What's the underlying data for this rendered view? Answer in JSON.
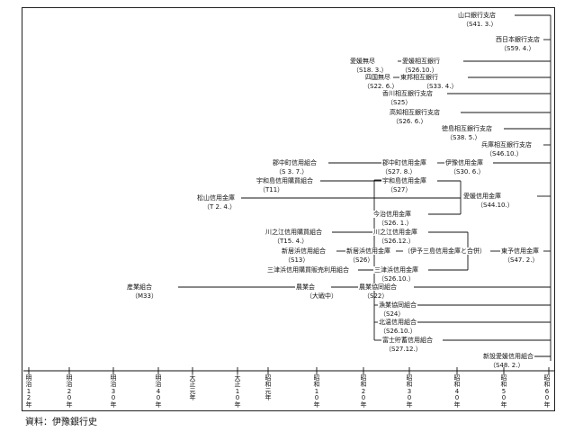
{
  "source": "資料：伊豫銀行史",
  "timeline": [
    "明治12年",
    "明治20年",
    "明治30年",
    "明治40年",
    "大正元年",
    "大正10年",
    "昭和元年",
    "昭和10年",
    "昭和20年",
    "昭和30年",
    "昭和40年",
    "昭和50年",
    "昭和60年"
  ],
  "nodes": [
    {
      "id": "yamaguchi",
      "label": "山口銀行支店",
      "date": "（S41. 3.）"
    },
    {
      "id": "nishinihon",
      "label": "西日本銀行支店",
      "date": "（S59. 4.）"
    },
    {
      "id": "ehime_mujin",
      "label": "愛媛無尽",
      "date": "（S18. 3.）"
    },
    {
      "id": "ehime_sogo",
      "label": "愛媛相互銀行",
      "date": "（S26.10.）"
    },
    {
      "id": "shikoku_mujin",
      "label": "四国無尽",
      "date": "（S22. 6.）"
    },
    {
      "id": "toyo_sogo",
      "label": "東邦相互銀行",
      "date": "（S33. 4.）"
    },
    {
      "id": "kagawa",
      "label": "香川相互銀行支店",
      "date": "（S25）"
    },
    {
      "id": "kochi",
      "label": "高知相互銀行支店",
      "date": "（S26. 6.）"
    },
    {
      "id": "tokushima",
      "label": "徳島相互銀行支店",
      "date": "（S38. 5.）"
    },
    {
      "id": "hyogo",
      "label": "兵庫相互銀行支店",
      "date": "（S46.10.）"
    },
    {
      "id": "gochu_kumiai",
      "label": "郡中町信用組合",
      "date": "（S 3. 7.）"
    },
    {
      "id": "gochu_kinko",
      "label": "郡中町信用金庫",
      "date": "（S27. 8.）"
    },
    {
      "id": "iyo_kinko",
      "label": "伊豫信用金庫",
      "date": "（S30. 6.）"
    },
    {
      "id": "uwajima_kumiai",
      "label": "宇和島信用購買組合",
      "date": "（T11）"
    },
    {
      "id": "uwajima_kinko",
      "label": "宇和島信用金庫",
      "date": "（S27）"
    },
    {
      "id": "matsuyama",
      "label": "松山信用金庫",
      "date": "（T 2. 4.）"
    },
    {
      "id": "ehime_shinyo",
      "label": "愛媛信用金庫",
      "date": "（S44.10.）"
    },
    {
      "id": "imabari",
      "label": "今治信用金庫",
      "date": "（S26. 1.）"
    },
    {
      "id": "kawanoe_kumiai",
      "label": "川之江信用購買組合",
      "date": "（T15. 4.）"
    },
    {
      "id": "kawanoe_kinko",
      "label": "川之江信用金庫",
      "date": "（S26.12.）"
    },
    {
      "id": "niihama_kumiai",
      "label": "新居浜信用組合",
      "date": "（S13）"
    },
    {
      "id": "niihama_kinko",
      "label": "新居浜信用金庫",
      "date": "（S26）"
    },
    {
      "id": "merge_note",
      "label": "（伊予三島信用金庫と合併）",
      "date": ""
    },
    {
      "id": "toyo_shinyo",
      "label": "東予信用金庫",
      "date": "（S47. 2.）"
    },
    {
      "id": "mishima_kumiai",
      "label": "三津浜信用購買販売利用組合",
      "date": ""
    },
    {
      "id": "mishima_kinko",
      "label": "三津浜信用金庫",
      "date": "（S26.10.）"
    },
    {
      "id": "sangyo",
      "label": "産業組合",
      "date": "（M33）"
    },
    {
      "id": "nogyokai",
      "label": "農業会",
      "date": "（大戦中）"
    },
    {
      "id": "nokyo",
      "label": "農業協同組合",
      "date": "（S22）"
    },
    {
      "id": "gyokyo",
      "label": "漁業協同組合",
      "date": "（S24）"
    },
    {
      "id": "hokuyo",
      "label": "北温信用組合",
      "date": "（S26.10.）"
    },
    {
      "id": "fujimi",
      "label": "富士貯蓄信用組合",
      "date": "（S27.12.）"
    },
    {
      "id": "shinsetsu",
      "label": "新設愛媛信用組合",
      "date": "（S48. 2.）"
    }
  ]
}
